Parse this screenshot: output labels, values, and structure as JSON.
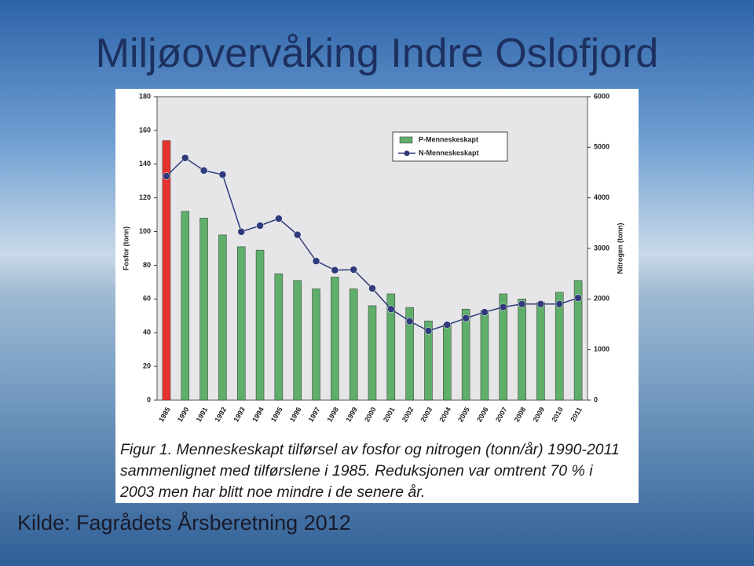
{
  "slide_title": "Miljøovervåking Indre Oslofjord",
  "source": "Kilde: Fagrådets Årsberetning 2012",
  "caption": [
    "Figur 1. Menneskeskapt tilførsel av fosfor og nitrogen (tonn/år) 1990-2011",
    "sammenlignet med tilførslene i 1985. Reduksjonen var omtrent 70 % i",
    "2003 men har blitt noe mindre i de senere år."
  ],
  "chart_data": {
    "type": "bar_line",
    "ylabel": "Fosfor (tonn)",
    "y2label": "Nitrogen (tonn)",
    "categories": [
      "1985",
      "1990",
      "1991",
      "1992",
      "1993",
      "1994",
      "1995",
      "1996",
      "1997",
      "1998",
      "1999",
      "2000",
      "2001",
      "2002",
      "2003",
      "2004",
      "2005",
      "2006",
      "2007",
      "2008",
      "2009",
      "2010",
      "2011"
    ],
    "series": [
      {
        "name": "P-Menneskeskapt",
        "color": "#5fae6a",
        "colors": [
          "#e8322e",
          "#5fae6a",
          "#5fae6a",
          "#5fae6a",
          "#5fae6a",
          "#5fae6a",
          "#5fae6a",
          "#5fae6a",
          "#5fae6a",
          "#5fae6a",
          "#5fae6a",
          "#5fae6a",
          "#5fae6a",
          "#5fae6a",
          "#5fae6a",
          "#5fae6a",
          "#5fae6a",
          "#5fae6a",
          "#5fae6a",
          "#5fae6a",
          "#5fae6a",
          "#5fae6a",
          "#5fae6a"
        ],
        "values": [
          154,
          112,
          108,
          98,
          91,
          89,
          75,
          71,
          66,
          73,
          66,
          56,
          63,
          55,
          47,
          45,
          54,
          53,
          63,
          60,
          58,
          64,
          71
        ]
      },
      {
        "name": "N-Menneskeskapt",
        "color": "#2e3a7a",
        "axis": "y2",
        "values": [
          4430,
          4790,
          4540,
          4460,
          3330,
          3450,
          3590,
          3270,
          2750,
          2570,
          2580,
          2210,
          1800,
          1560,
          1370,
          1490,
          1620,
          1740,
          1840,
          1900,
          1900,
          1900,
          2020
        ]
      }
    ],
    "ylim": [
      0,
      180
    ],
    "yticks": [
      0,
      20,
      40,
      60,
      80,
      100,
      120,
      140,
      160,
      180
    ],
    "y2lim": [
      0,
      6000
    ],
    "y2ticks": [
      0,
      1000,
      2000,
      3000,
      4000,
      5000,
      6000
    ],
    "legend": "top-right"
  }
}
